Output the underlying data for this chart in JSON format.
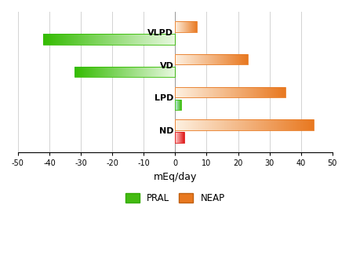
{
  "diets": [
    "VLPD",
    "VD",
    "LPD",
    "ND"
  ],
  "pral": [
    -42,
    -32,
    2,
    3
  ],
  "neap": [
    7,
    23,
    35,
    44
  ],
  "pral_color_positive": "#dd1111",
  "pral_color_negative": "#33bb00",
  "pral_fade_negative": "#e8f8e0",
  "pral_fade_positive_lpd": "#c8e8f0",
  "pral_fade_positive_nd": "#ffcccc",
  "neap_color": "#e87820",
  "neap_fade": "#fdf0e0",
  "xlabel": "mEq/day",
  "xlim": [
    -50,
    50
  ],
  "xticks": [
    -50,
    -40,
    -30,
    -20,
    -10,
    0,
    10,
    20,
    30,
    40,
    50
  ],
  "legend_pral": "PRAL",
  "legend_neap": "NEAP",
  "bar_height": 0.32,
  "background_color": "#ffffff",
  "label_fontsize": 8,
  "label_fontweight": "bold"
}
